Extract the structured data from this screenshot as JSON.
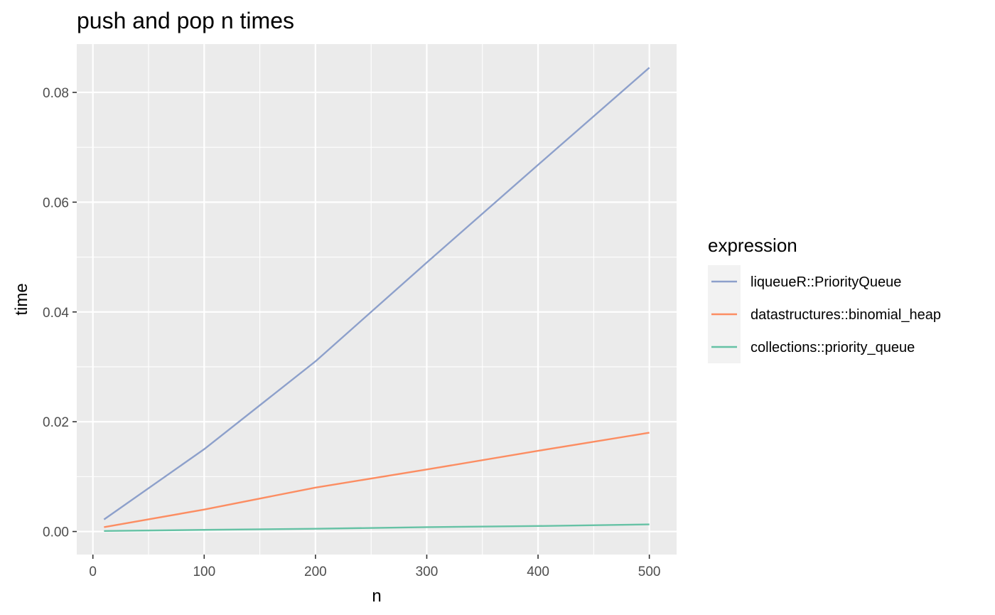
{
  "chart_data": {
    "type": "line",
    "title": "push and pop n times",
    "xlabel": "n",
    "ylabel": "time",
    "xlim": [
      -14.5,
      524.5
    ],
    "ylim": [
      -0.0042,
      0.0888
    ],
    "x_ticks": [
      0,
      100,
      200,
      300,
      400,
      500
    ],
    "x_tick_labels": [
      "0",
      "100",
      "200",
      "300",
      "400",
      "500"
    ],
    "x_minor_ticks": [
      50,
      150,
      250,
      350,
      450
    ],
    "y_ticks": [
      0,
      0.02,
      0.04,
      0.06,
      0.08
    ],
    "y_tick_labels": [
      "0.00",
      "0.02",
      "0.04",
      "0.06",
      "0.08"
    ],
    "y_minor_ticks": [
      0.01,
      0.03,
      0.05,
      0.07
    ],
    "grid": true,
    "panel_background": "#ebebeb",
    "legend": {
      "title": "expression",
      "placement": "right"
    },
    "series": [
      {
        "name": "liqueueR::PriorityQueue",
        "color": "#8da0cb",
        "x": [
          10,
          100,
          200,
          300,
          400,
          500
        ],
        "y": [
          0.0022,
          0.015,
          0.031,
          0.049,
          0.0668,
          0.0845
        ]
      },
      {
        "name": "datastructures::binomial_heap",
        "color": "#fc8d62",
        "x": [
          10,
          100,
          200,
          300,
          400,
          500
        ],
        "y": [
          0.0008,
          0.004,
          0.008,
          0.0113,
          0.0147,
          0.018
        ]
      },
      {
        "name": "collections::priority_queue",
        "color": "#66c2a5",
        "x": [
          10,
          100,
          200,
          300,
          400,
          500
        ],
        "y": [
          0.0001,
          0.0003,
          0.0005,
          0.0008,
          0.001,
          0.0013
        ]
      }
    ]
  }
}
